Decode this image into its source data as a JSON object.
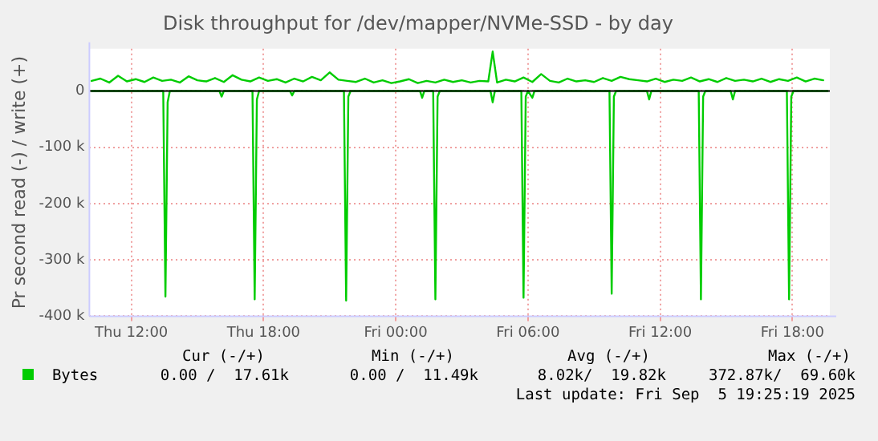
{
  "chart_data": {
    "type": "line",
    "title": "Disk throughput for /dev/mapper/NVMe-SSD - by day",
    "ylabel": "Pr second read (-) / write (+)",
    "xlim": [
      "2025-09-04T10:06",
      "2025-09-05T19:42"
    ],
    "xticks": [
      {
        "value": "2025-09-04T12:00",
        "label": "Thu 12:00"
      },
      {
        "value": "2025-09-04T18:00",
        "label": "Thu 18:00"
      },
      {
        "value": "2025-09-05T00:00",
        "label": "Fri 00:00"
      },
      {
        "value": "2025-09-05T06:00",
        "label": "Fri 06:00"
      },
      {
        "value": "2025-09-05T12:00",
        "label": "Fri 12:00"
      },
      {
        "value": "2025-09-05T18:00",
        "label": "Fri 18:00"
      }
    ],
    "ylim": [
      -400000,
      75000
    ],
    "yticks": [
      {
        "value": -400000,
        "label": "-400 k"
      },
      {
        "value": -300000,
        "label": "-300 k"
      },
      {
        "value": -200000,
        "label": "-200 k"
      },
      {
        "value": -100000,
        "label": "-100 k"
      },
      0
    ],
    "grid": true,
    "legend": "bottom left",
    "marker": "none",
    "line_style": "solid",
    "ref_lines": [
      {
        "axis": "y",
        "value": 0,
        "color": "#000000"
      }
    ],
    "series": [
      {
        "name": "Bytes",
        "color": "#00cc00",
        "x": [
          "2025-09-04T10:12",
          "2025-09-04T10:36",
          "2025-09-04T11:00",
          "2025-09-04T11:24",
          "2025-09-04T11:48",
          "2025-09-04T12:12",
          "2025-09-04T12:36",
          "2025-09-04T13:00",
          "2025-09-04T13:24",
          "2025-09-04T13:48",
          "2025-09-04T14:12",
          "2025-09-04T14:36",
          "2025-09-04T15:00",
          "2025-09-04T15:24",
          "2025-09-04T15:48",
          "2025-09-04T16:12",
          "2025-09-04T16:36",
          "2025-09-04T17:00",
          "2025-09-04T17:24",
          "2025-09-04T17:48",
          "2025-09-04T18:12",
          "2025-09-04T18:36",
          "2025-09-04T19:00",
          "2025-09-04T19:24",
          "2025-09-04T19:48",
          "2025-09-04T20:12",
          "2025-09-04T20:36",
          "2025-09-04T21:00",
          "2025-09-04T21:24",
          "2025-09-04T21:48",
          "2025-09-04T22:12",
          "2025-09-04T22:36",
          "2025-09-04T23:00",
          "2025-09-04T23:24",
          "2025-09-04T23:48",
          "2025-09-05T00:12",
          "2025-09-05T00:36",
          "2025-09-05T01:00",
          "2025-09-05T01:24",
          "2025-09-05T01:48",
          "2025-09-05T02:12",
          "2025-09-05T02:36",
          "2025-09-05T03:00",
          "2025-09-05T03:24",
          "2025-09-05T03:48",
          "2025-09-05T04:12",
          "2025-09-05T04:24",
          "2025-09-05T04:36",
          "2025-09-05T05:00",
          "2025-09-05T05:24",
          "2025-09-05T05:48",
          "2025-09-05T06:12",
          "2025-09-05T06:36",
          "2025-09-05T07:00",
          "2025-09-05T07:24",
          "2025-09-05T07:48",
          "2025-09-05T08:12",
          "2025-09-05T08:36",
          "2025-09-05T09:00",
          "2025-09-05T09:24",
          "2025-09-05T09:48",
          "2025-09-05T10:12",
          "2025-09-05T10:36",
          "2025-09-05T11:00",
          "2025-09-05T11:24",
          "2025-09-05T11:48",
          "2025-09-05T12:12",
          "2025-09-05T12:36",
          "2025-09-05T13:00",
          "2025-09-05T13:24",
          "2025-09-05T13:48",
          "2025-09-05T14:12",
          "2025-09-05T14:36",
          "2025-09-05T15:00",
          "2025-09-05T15:24",
          "2025-09-05T15:48",
          "2025-09-05T16:12",
          "2025-09-05T16:36",
          "2025-09-05T17:00",
          "2025-09-05T17:24",
          "2025-09-05T17:48",
          "2025-09-05T18:12",
          "2025-09-05T18:36",
          "2025-09-05T19:00",
          "2025-09-05T19:24"
        ],
        "values": [
          18000,
          22000,
          15000,
          27000,
          17000,
          21000,
          16000,
          24000,
          18000,
          20000,
          15000,
          26000,
          19000,
          17000,
          23000,
          16000,
          28000,
          20000,
          17000,
          24000,
          18000,
          21000,
          15000,
          22000,
          17000,
          25000,
          19000,
          33000,
          20000,
          18000,
          16000,
          22000,
          15000,
          19000,
          14000,
          17000,
          21000,
          14000,
          18000,
          15000,
          20000,
          16000,
          19000,
          15000,
          18000,
          17000,
          70000,
          15000,
          20000,
          17000,
          24000,
          16000,
          30000,
          18000,
          15000,
          22000,
          17000,
          19000,
          16000,
          23000,
          18000,
          25000,
          21000,
          19000,
          17000,
          22000,
          16000,
          20000,
          18000,
          24000,
          17000,
          21000,
          16000,
          23000,
          18000,
          20000,
          17000,
          22000,
          16000,
          21000,
          18000,
          24000,
          17000,
          22000,
          19000
        ]
      },
      {
        "color": "#00cc00",
        "x": [
          "2025-09-04T10:12",
          "2025-09-04T13:27",
          "2025-09-04T13:33",
          "2025-09-04T13:39",
          "2025-09-04T13:45",
          "2025-09-04T16:00",
          "2025-09-04T16:06",
          "2025-09-04T16:12",
          "2025-09-04T17:30",
          "2025-09-04T17:36",
          "2025-09-04T17:42",
          "2025-09-04T17:48",
          "2025-09-04T19:12",
          "2025-09-04T19:18",
          "2025-09-04T19:24",
          "2025-09-04T21:39",
          "2025-09-04T21:45",
          "2025-09-04T21:51",
          "2025-09-04T21:57",
          "2025-09-05T01:06",
          "2025-09-05T01:12",
          "2025-09-05T01:18",
          "2025-09-05T01:42",
          "2025-09-05T01:48",
          "2025-09-05T01:54",
          "2025-09-05T02:00",
          "2025-09-05T04:18",
          "2025-09-05T04:24",
          "2025-09-05T04:30",
          "2025-09-05T05:42",
          "2025-09-05T05:48",
          "2025-09-05T05:54",
          "2025-09-05T06:00",
          "2025-09-05T06:12",
          "2025-09-05T06:18",
          "2025-09-05T09:42",
          "2025-09-05T09:48",
          "2025-09-05T09:54",
          "2025-09-05T10:00",
          "2025-09-05T11:24",
          "2025-09-05T11:30",
          "2025-09-05T11:36",
          "2025-09-05T13:45",
          "2025-09-05T13:51",
          "2025-09-05T13:57",
          "2025-09-05T14:03",
          "2025-09-05T15:12",
          "2025-09-05T15:18",
          "2025-09-05T15:24",
          "2025-09-05T17:45",
          "2025-09-05T17:51",
          "2025-09-05T17:57",
          "2025-09-05T18:03",
          "2025-09-05T19:36"
        ],
        "values": [
          0,
          0,
          -365000,
          -20000,
          0,
          0,
          -10000,
          0,
          0,
          -370000,
          -15000,
          0,
          0,
          -8000,
          0,
          0,
          -372000,
          -10000,
          0,
          0,
          -12000,
          0,
          0,
          -370000,
          -10000,
          0,
          0,
          -20000,
          0,
          0,
          -367000,
          -10000,
          0,
          -12000,
          0,
          0,
          -360000,
          -10000,
          0,
          0,
          -15000,
          0,
          0,
          -370000,
          -10000,
          0,
          0,
          -15000,
          0,
          0,
          -370000,
          -10000,
          0,
          0
        ]
      }
    ],
    "annotations": [
      "Cur (-/+)",
      "Min (-/+)",
      "Avg (-/+)",
      "Max (-/+)",
      "0.00 /  17.61k",
      "0.00 /  11.49k",
      "8.02k/  19.82k",
      "372.87k/  69.60k",
      "Last update: Fri Sep  5 19:25:19 2025"
    ]
  }
}
